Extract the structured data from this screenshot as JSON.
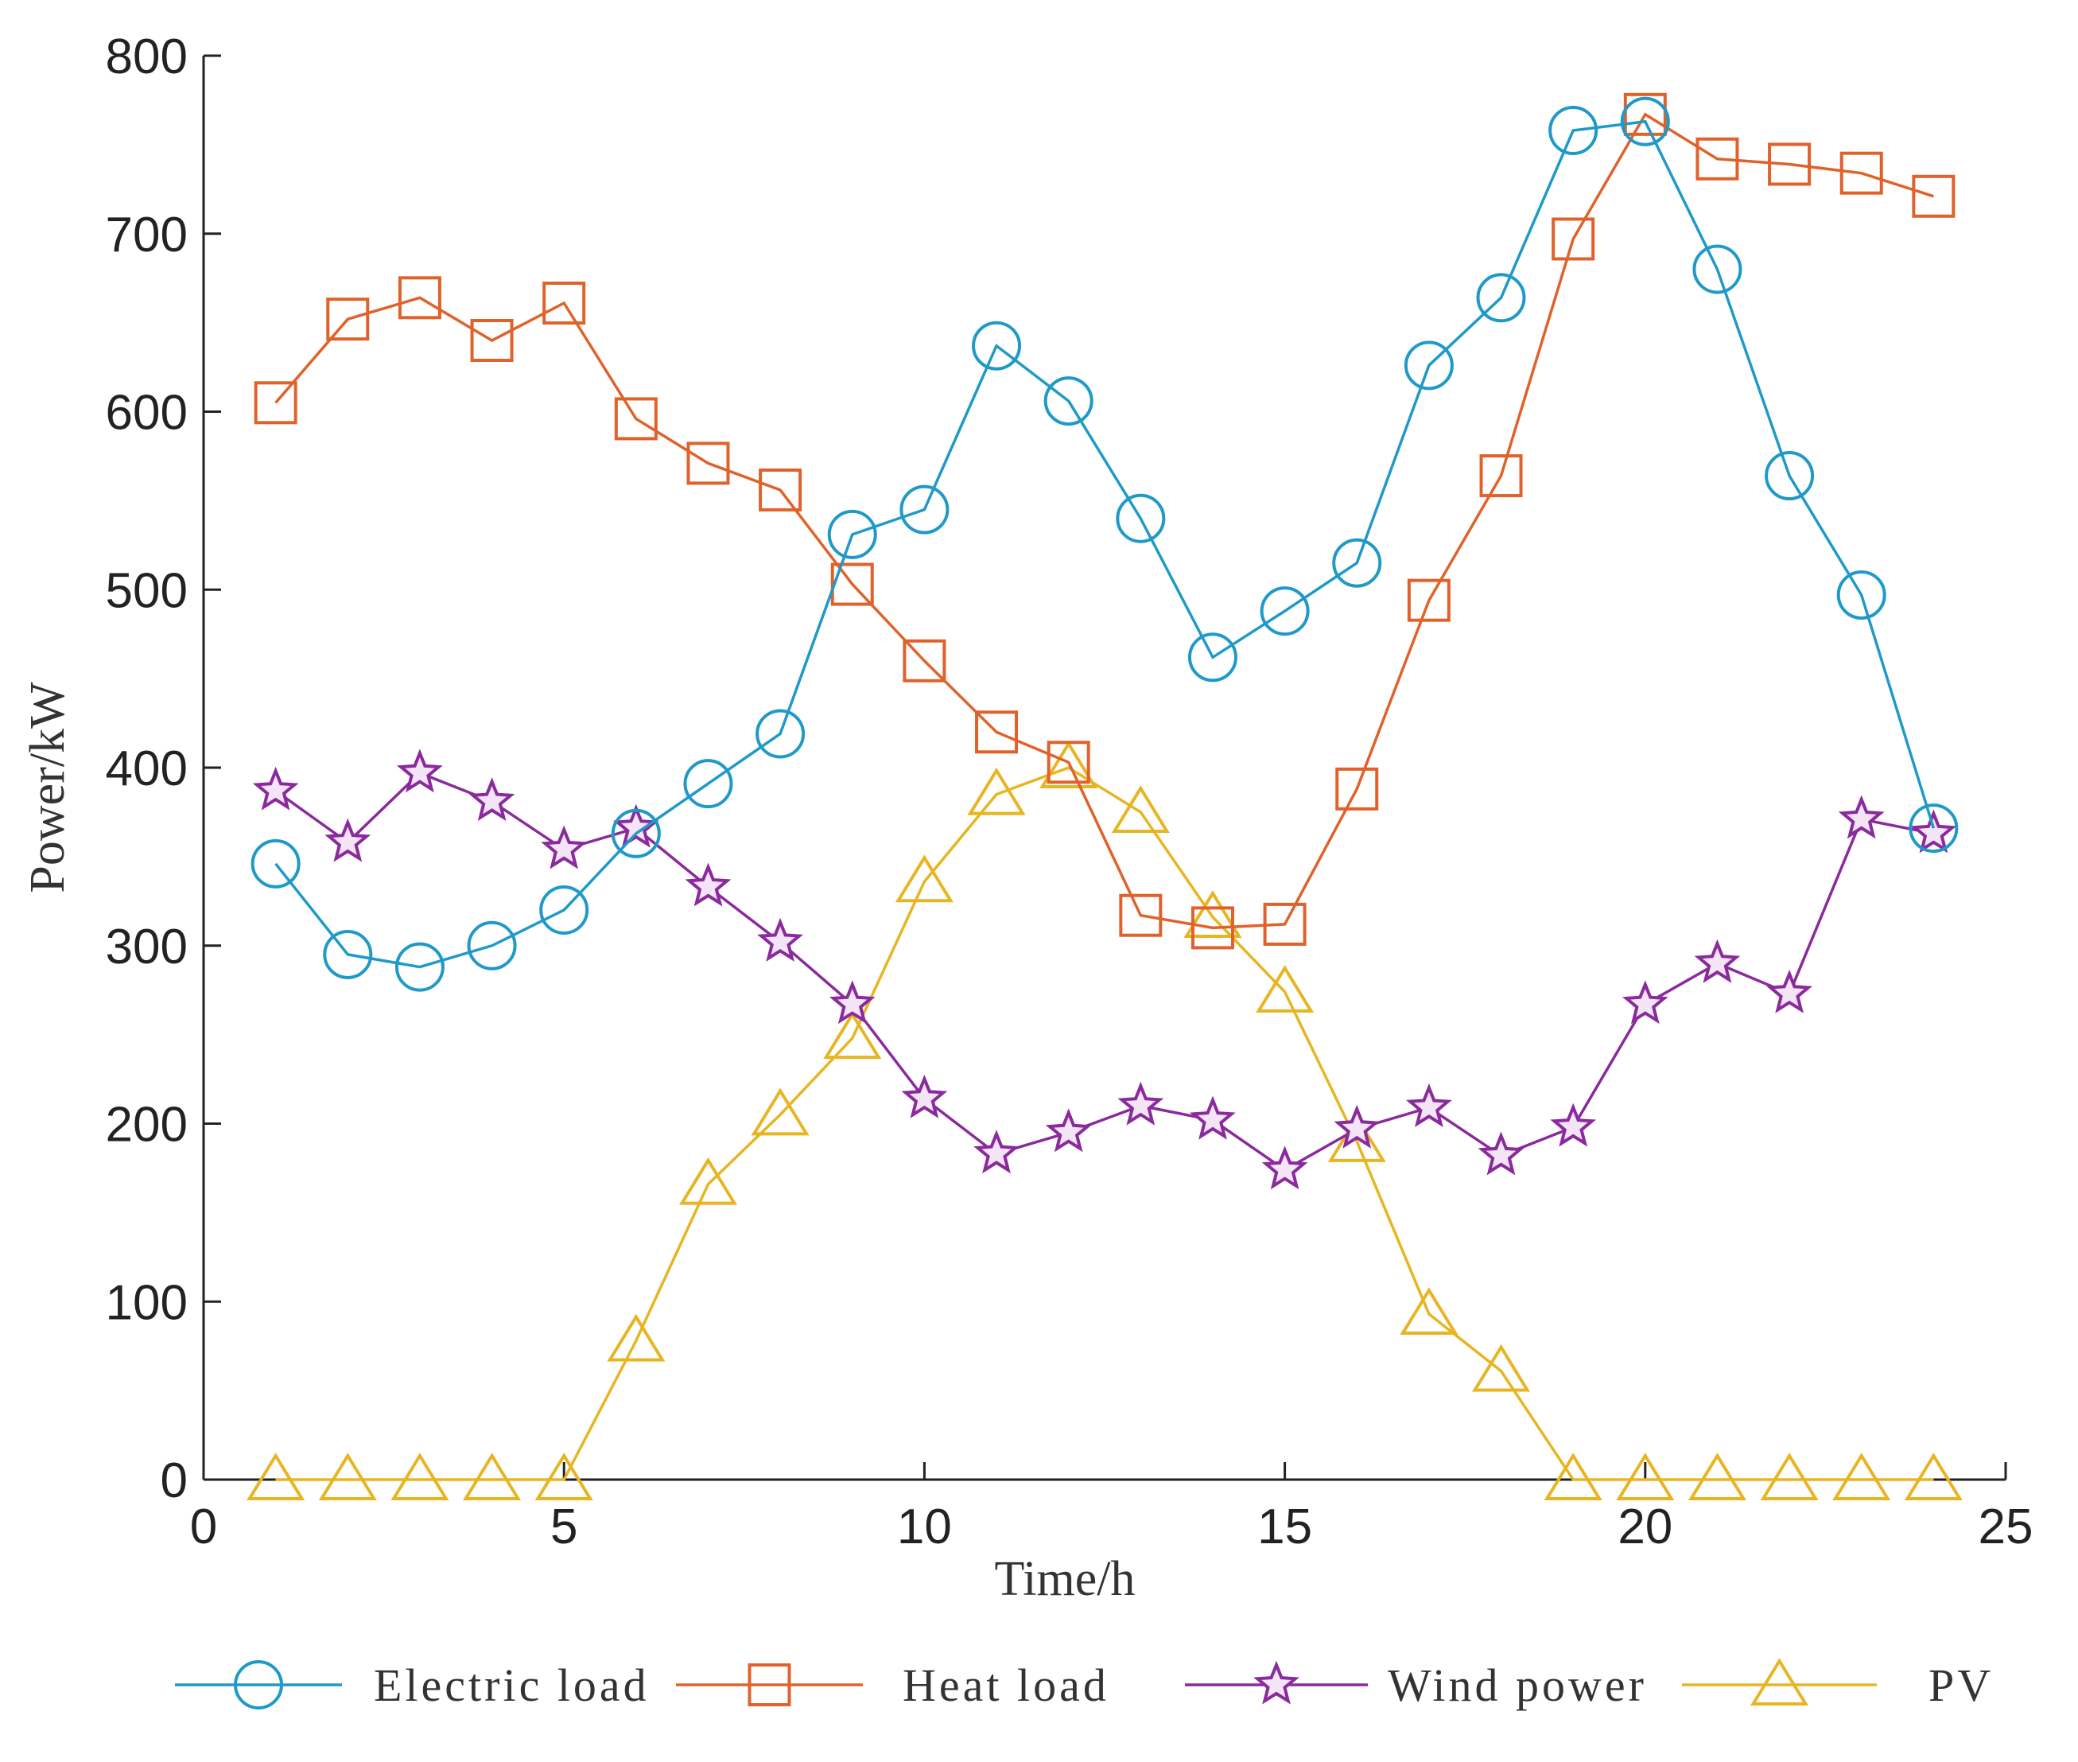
{
  "chart_data": {
    "type": "line",
    "xlabel": "Time/h",
    "ylabel": "Power/kW",
    "xlim": [
      0,
      25
    ],
    "ylim": [
      0,
      800
    ],
    "xticks": [
      0,
      5,
      10,
      15,
      20,
      25
    ],
    "yticks": [
      0,
      100,
      200,
      300,
      400,
      500,
      600,
      700,
      800
    ],
    "grid": false,
    "legend_position": "bottom",
    "x": [
      1,
      2,
      3,
      4,
      5,
      6,
      7,
      8,
      9,
      10,
      11,
      12,
      13,
      14,
      15,
      16,
      17,
      18,
      19,
      20,
      21,
      22,
      23,
      24
    ],
    "series": [
      {
        "name": "Electric load",
        "color": "#1f9ac8",
        "marker": "circle",
        "values": [
          346,
          295,
          288,
          300,
          320,
          363,
          391,
          419,
          531,
          545,
          637,
          606,
          540,
          462,
          488,
          515,
          626,
          664,
          758,
          763,
          680,
          564,
          497,
          366
        ]
      },
      {
        "name": "Heat load",
        "color": "#e0622a",
        "marker": "square",
        "values": [
          605,
          652,
          664,
          640,
          661,
          596,
          571,
          556,
          503,
          460,
          420,
          403,
          317,
          310,
          312,
          388,
          494,
          564,
          697,
          767,
          742,
          739,
          734,
          721
        ]
      },
      {
        "name": "Wind power",
        "color": "#8a2a9c",
        "marker": "star",
        "values": [
          387,
          358,
          397,
          381,
          354,
          366,
          333,
          302,
          267,
          214,
          183,
          195,
          210,
          202,
          174,
          197,
          209,
          182,
          198,
          267,
          290,
          273,
          371,
          363
        ]
      },
      {
        "name": "PV",
        "color": "#e8b522",
        "marker": "triangle",
        "values": [
          0,
          0,
          0,
          0,
          0,
          78,
          166,
          205,
          248,
          336,
          385,
          400,
          375,
          316,
          274,
          190,
          93,
          61,
          0,
          0,
          0,
          0,
          0,
          0
        ]
      }
    ]
  }
}
